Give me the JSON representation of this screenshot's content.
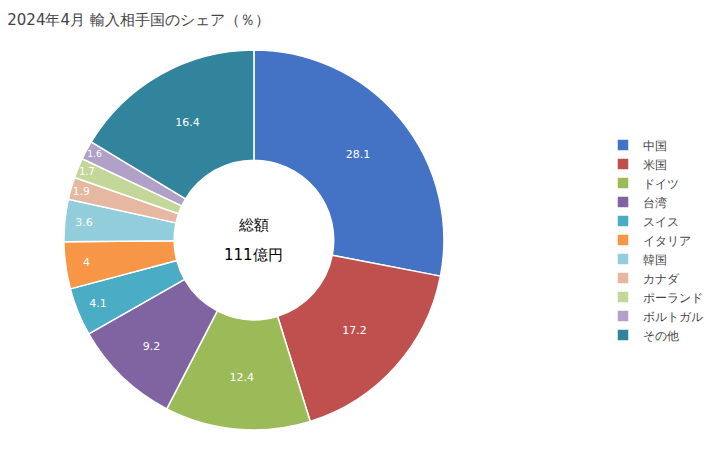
{
  "chart_data": {
    "type": "pie",
    "title": "2024年4月 輸入相手国のシェア（％）",
    "categories": [
      "中国",
      "米国",
      "ドイツ",
      "台湾",
      "スイス",
      "イタリア",
      "韓国",
      "カナダ",
      "ポーランド",
      "ボルトガル",
      "その他"
    ],
    "values": [
      28.1,
      17.2,
      12.4,
      9.2,
      4.1,
      4.0,
      3.6,
      1.9,
      1.7,
      1.6,
      16.4
    ],
    "value_labels": [
      "28.1",
      "17.2",
      "12.4",
      "9.2",
      "4.1",
      "4",
      "3.6",
      "1.9",
      "1.7",
      "1.6",
      "16.4"
    ],
    "colors": [
      "#4472C4",
      "#C0504D",
      "#9BBB59",
      "#8064A2",
      "#4BACC6",
      "#F79646",
      "#92CDDC",
      "#E6B8A2",
      "#C4D79B",
      "#B1A0C7",
      "#31849B"
    ],
    "data_labels": true,
    "legend": "right",
    "annotations": [
      "総額",
      "111億円"
    ]
  }
}
